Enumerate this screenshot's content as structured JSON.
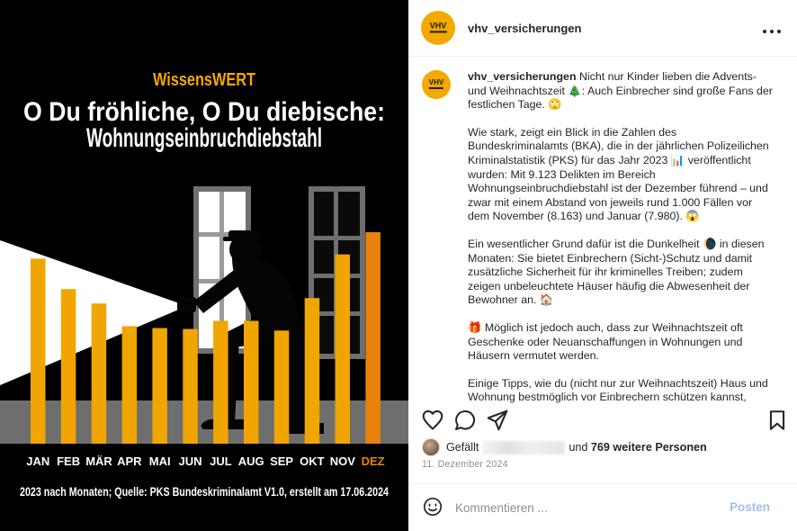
{
  "post": {
    "header": {
      "username": "vhv_versicherungen",
      "menu_icon": "more-options-dots"
    },
    "caption": {
      "username": "vhv_versicherungen",
      "paragraphs": [
        "Nicht nur Kinder lieben die Advents- und Weihnachtszeit 🎄: Auch Einbrecher sind große Fans der festlichen Tage. 🙄",
        "Wie stark, zeigt ein Blick in die Zahlen des Bundeskriminalamts (BKA), die in der jährlichen Polizeilichen Kriminalstatistik (PKS) für das Jahr 2023 📊 veröffentlicht wurden: Mit 9.123 Delikten im Bereich Wohnungseinbruchdiebstahl ist der Dezember führend – und zwar mit einem Abstand von jeweils rund 1.000 Fällen vor dem November (8.163) und Januar (7.980). 😱",
        "Ein wesentlicher Grund dafür ist die Dunkelheit 🌘 in diesen Monaten: Sie bietet Einbrechern (Sicht-)Schutz und damit zusätzliche Sicherheit für ihr kriminelles Treiben; zudem zeigen unbeleuchtete Häuser häufig die Abwesenheit der Bewohner an. 🏠",
        "🎁 Möglich ist jedoch auch, dass zur Weihnachtszeit oft Geschenke oder Neuanschaffungen in Wohnungen und Häusern vermutet werden.",
        "Einige Tipps, wie du (nicht nur zur Weihnachtszeit) Haus und Wohnung bestmöglich vor Einbrechern schützen kannst, haben wir dir in einem Ratgeber-Artikel zusammengestellt."
      ]
    },
    "actions": {
      "like_icon": "heart",
      "comment_icon": "speech-bubble",
      "share_icon": "paper-plane",
      "save_icon": "bookmark"
    },
    "likes": {
      "prefix": "Gefällt",
      "redacted_username": true,
      "connector": "und",
      "count_text": "769 weitere Personen"
    },
    "date": "11. Dezember 2024",
    "comment": {
      "placeholder": "Kommentieren ...",
      "emoji_icon": "smiley-face",
      "submit_label": "Posten"
    }
  },
  "infographic": {
    "kicker": "WissensWERT",
    "title_line1": "O Du fröhliche, O Du diebische:",
    "title_line2": "Wohnungseinbruchdiebstahl",
    "source_line": "2023 nach Monaten; Quelle: PKS Bundeskriminalamt V1.0, erstellt am 17.06.2024",
    "colors": {
      "accent_yellow": "#F0A500",
      "accent_orange": "#E8820A",
      "background": "#000000",
      "floor_gray": "#6E6E6E",
      "kicker_color": "#F2A900"
    }
  },
  "chart_data": {
    "type": "bar",
    "title": "Wohnungseinbruchdiebstahl 2023 nach Monaten",
    "source": "PKS Bundeskriminalamt V1.0, erstellt am 17.06.2024",
    "categories": [
      "JAN",
      "FEB",
      "MÄR",
      "APR",
      "MAI",
      "JUN",
      "JUL",
      "AUG",
      "SEP",
      "OKT",
      "NOV",
      "DEZ"
    ],
    "values": [
      7980,
      6670,
      6050,
      5070,
      4990,
      4950,
      5300,
      5300,
      4880,
      6280,
      8163,
      9123
    ],
    "values_stated_in_caption": {
      "JAN": 7980,
      "NOV": 8163,
      "DEZ": 9123
    },
    "highlight_index": 11,
    "bar_color": "#F0A500",
    "highlight_color": "#E8820A",
    "tick_label_color": "#FFFFFF",
    "highlight_tick_color": "#E8820A",
    "ylim": [
      0,
      9123
    ],
    "gridlines": false,
    "legend": false
  }
}
